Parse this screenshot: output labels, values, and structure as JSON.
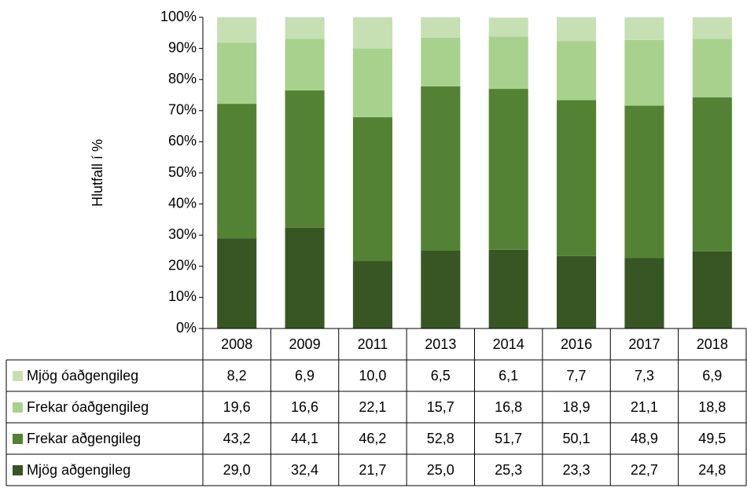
{
  "chart_data": {
    "type": "stacked_bar",
    "y_label": "Hlutfall í %",
    "categories": [
      "2008",
      "2009",
      "2011",
      "2013",
      "2014",
      "2016",
      "2017",
      "2018"
    ],
    "series": [
      {
        "name": "Mjög óaðgengileg",
        "color": "#c6e0b4",
        "values": [
          8.2,
          6.9,
          10.0,
          6.5,
          6.1,
          7.7,
          7.3,
          6.9
        ],
        "value_labels": [
          "8,2",
          "6,9",
          "10,0",
          "6,5",
          "6,1",
          "7,7",
          "7,3",
          "6,9"
        ]
      },
      {
        "name": "Frekar óaðgengileg",
        "color": "#a9d18e",
        "values": [
          19.6,
          16.6,
          22.1,
          15.7,
          16.8,
          18.9,
          21.1,
          18.8
        ],
        "value_labels": [
          "19,6",
          "16,6",
          "22,1",
          "15,7",
          "16,8",
          "18,9",
          "21,1",
          "18,8"
        ]
      },
      {
        "name": "Frekar aðgengileg",
        "color": "#548235",
        "values": [
          43.2,
          44.1,
          46.2,
          52.8,
          51.7,
          50.1,
          48.9,
          49.5
        ],
        "value_labels": [
          "43,2",
          "44,1",
          "46,2",
          "52,8",
          "51,7",
          "50,1",
          "48,9",
          "49,5"
        ]
      },
      {
        "name": "Mjög aðgengileg",
        "color": "#375623",
        "values": [
          29.0,
          32.4,
          21.7,
          25.0,
          25.3,
          23.3,
          22.7,
          24.8
        ],
        "value_labels": [
          "29,0",
          "32,4",
          "21,7",
          "25,0",
          "25,3",
          "23,3",
          "22,7",
          "24,8"
        ]
      }
    ],
    "ylim": [
      0,
      100
    ],
    "yticks": [
      {
        "value": 0,
        "label": "0%"
      },
      {
        "value": 10,
        "label": "10%"
      },
      {
        "value": 20,
        "label": "20%"
      },
      {
        "value": 30,
        "label": "30%"
      },
      {
        "value": 40,
        "label": "40%"
      },
      {
        "value": 50,
        "label": "50%"
      },
      {
        "value": 60,
        "label": "60%"
      },
      {
        "value": 70,
        "label": "70%"
      },
      {
        "value": 80,
        "label": "80%"
      },
      {
        "value": 90,
        "label": "90%"
      },
      {
        "value": 100,
        "label": "100%"
      }
    ]
  }
}
